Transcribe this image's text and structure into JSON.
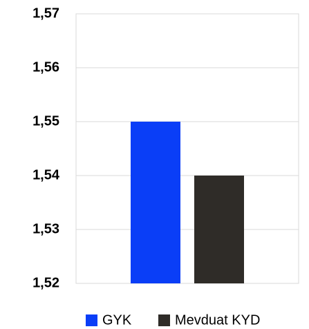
{
  "chart_data": {
    "type": "bar",
    "categories": [
      null
    ],
    "series": [
      {
        "name": "GYK",
        "color": "#0a3ef7",
        "values": [
          1.55
        ]
      },
      {
        "name": "Mevduat KYD",
        "color": "#2f2c28",
        "values": [
          1.54
        ]
      }
    ],
    "ylim": [
      1.52,
      1.57
    ],
    "yticks": [
      {
        "value": 1.52,
        "label": "1,52"
      },
      {
        "value": 1.53,
        "label": "1,53"
      },
      {
        "value": 1.54,
        "label": "1,54"
      },
      {
        "value": 1.55,
        "label": "1,55"
      },
      {
        "value": 1.56,
        "label": "1,56"
      },
      {
        "value": 1.57,
        "label": "1,57"
      }
    ],
    "grid": true,
    "legend": "bottom"
  }
}
